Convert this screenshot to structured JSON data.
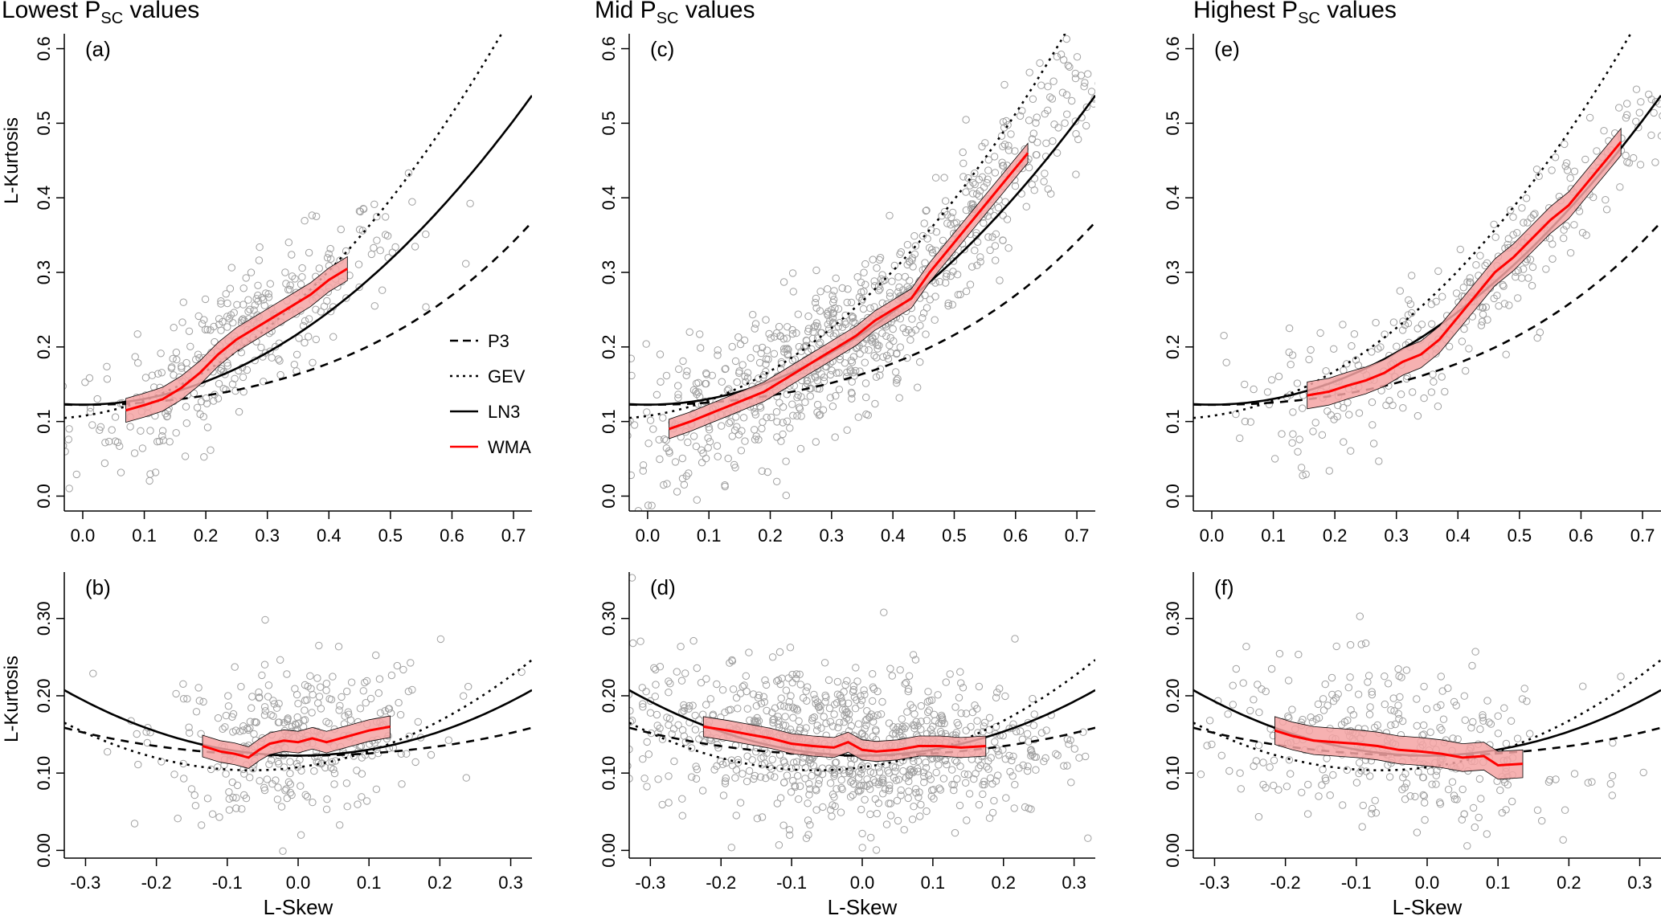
{
  "columns": [
    {
      "title_pre": "Lowest P",
      "title_sub": "SC",
      "title_post": " values"
    },
    {
      "title_pre": "Mid P",
      "title_sub": "SC",
      "title_post": " values"
    },
    {
      "title_pre": "Highest P",
      "title_sub": "SC",
      "title_post": " values"
    }
  ],
  "ylabel": "L-Kurtosis",
  "xlabel": "L-Skew",
  "legend": {
    "placement": "inside panel (a), lower right",
    "entries": [
      {
        "label": "P3",
        "style": "dashed",
        "color": "#000000"
      },
      {
        "label": "GEV",
        "style": "dotted",
        "color": "#000000"
      },
      {
        "label": "LN3",
        "style": "solid",
        "color": "#000000"
      },
      {
        "label": "WMA",
        "style": "solid",
        "color": "#ff0000"
      }
    ]
  },
  "colors": {
    "wma": "#ff0000",
    "wma_band": "#f4a3a3",
    "points": "#a0a0a0",
    "theory": "#000000"
  },
  "chart_data": [
    {
      "type": "scatter",
      "panel": "(a)",
      "row": "top",
      "xlim": [
        -0.03,
        0.73
      ],
      "ylim": [
        -0.02,
        0.62
      ],
      "xticks": [
        "0.0",
        "0.1",
        "0.2",
        "0.3",
        "0.4",
        "0.5",
        "0.6",
        "0.7"
      ],
      "yticks": [
        "0.0",
        "0.1",
        "0.2",
        "0.3",
        "0.4",
        "0.5",
        "0.6"
      ],
      "wma": {
        "x": [
          0.07,
          0.1,
          0.13,
          0.16,
          0.19,
          0.22,
          0.25,
          0.28,
          0.31,
          0.34,
          0.37,
          0.4,
          0.43
        ],
        "y": [
          0.115,
          0.122,
          0.13,
          0.145,
          0.165,
          0.19,
          0.21,
          0.225,
          0.24,
          0.255,
          0.27,
          0.29,
          0.305
        ],
        "band": 0.016
      },
      "n_points": 330,
      "scatter_sd": 0.045
    },
    {
      "type": "scatter",
      "panel": "(b)",
      "row": "bottom",
      "xlim": [
        -0.33,
        0.33
      ],
      "ylim": [
        -0.01,
        0.36
      ],
      "xticks": [
        "-0.3",
        "-0.2",
        "-0.1",
        "0.0",
        "0.1",
        "0.2",
        "0.3"
      ],
      "yticks": [
        "0.00",
        "0.10",
        "0.20",
        "0.30"
      ],
      "wma": {
        "x": [
          -0.135,
          -0.11,
          -0.09,
          -0.07,
          -0.055,
          -0.04,
          -0.02,
          0.0,
          0.02,
          0.04,
          0.06,
          0.08,
          0.1,
          0.13
        ],
        "y": [
          0.135,
          0.128,
          0.125,
          0.12,
          0.13,
          0.138,
          0.142,
          0.14,
          0.145,
          0.14,
          0.145,
          0.15,
          0.155,
          0.16
        ],
        "band": 0.014
      },
      "n_points": 330,
      "scatter_sd": 0.05
    },
    {
      "type": "scatter",
      "panel": "(c)",
      "row": "top",
      "xlim": [
        -0.03,
        0.73
      ],
      "ylim": [
        -0.02,
        0.62
      ],
      "xticks": [
        "0.0",
        "0.1",
        "0.2",
        "0.3",
        "0.4",
        "0.5",
        "0.6",
        "0.7"
      ],
      "yticks": [
        "0.0",
        "0.1",
        "0.2",
        "0.3",
        "0.4",
        "0.5",
        "0.6"
      ],
      "wma": {
        "x": [
          0.035,
          0.07,
          0.1,
          0.13,
          0.16,
          0.19,
          0.22,
          0.25,
          0.28,
          0.31,
          0.34,
          0.37,
          0.4,
          0.43,
          0.46,
          0.49,
          0.52,
          0.55,
          0.58,
          0.62
        ],
        "y": [
          0.09,
          0.1,
          0.11,
          0.12,
          0.13,
          0.14,
          0.155,
          0.17,
          0.185,
          0.2,
          0.215,
          0.235,
          0.25,
          0.265,
          0.3,
          0.33,
          0.36,
          0.39,
          0.42,
          0.46
        ],
        "band": 0.013
      },
      "n_points": 900,
      "scatter_sd": 0.05
    },
    {
      "type": "scatter",
      "panel": "(d)",
      "row": "bottom",
      "xlim": [
        -0.33,
        0.33
      ],
      "ylim": [
        -0.01,
        0.36
      ],
      "xticks": [
        "-0.3",
        "-0.2",
        "-0.1",
        "0.0",
        "0.1",
        "0.2",
        "0.3"
      ],
      "yticks": [
        "0.00",
        "0.10",
        "0.20",
        "0.30"
      ],
      "wma": {
        "x": [
          -0.225,
          -0.19,
          -0.16,
          -0.13,
          -0.1,
          -0.07,
          -0.04,
          -0.02,
          0.0,
          0.02,
          0.05,
          0.08,
          0.11,
          0.14,
          0.175
        ],
        "y": [
          0.16,
          0.155,
          0.15,
          0.145,
          0.138,
          0.135,
          0.133,
          0.14,
          0.13,
          0.128,
          0.13,
          0.135,
          0.135,
          0.133,
          0.135
        ],
        "band": 0.013
      },
      "n_points": 900,
      "scatter_sd": 0.05
    },
    {
      "type": "scatter",
      "panel": "(e)",
      "row": "top",
      "xlim": [
        -0.03,
        0.73
      ],
      "ylim": [
        -0.02,
        0.62
      ],
      "xticks": [
        "0.0",
        "0.1",
        "0.2",
        "0.3",
        "0.4",
        "0.5",
        "0.6",
        "0.7"
      ],
      "yticks": [
        "0.0",
        "0.1",
        "0.2",
        "0.3",
        "0.4",
        "0.5",
        "0.6"
      ],
      "wma": {
        "x": [
          0.155,
          0.19,
          0.22,
          0.25,
          0.28,
          0.31,
          0.34,
          0.37,
          0.4,
          0.43,
          0.46,
          0.49,
          0.52,
          0.55,
          0.58,
          0.61,
          0.64,
          0.665
        ],
        "y": [
          0.135,
          0.14,
          0.148,
          0.155,
          0.165,
          0.18,
          0.19,
          0.21,
          0.24,
          0.27,
          0.3,
          0.32,
          0.345,
          0.37,
          0.39,
          0.42,
          0.45,
          0.475
        ],
        "band": 0.018
      },
      "n_points": 330,
      "scatter_sd": 0.045
    },
    {
      "type": "scatter",
      "panel": "(f)",
      "row": "bottom",
      "xlim": [
        -0.33,
        0.33
      ],
      "ylim": [
        -0.01,
        0.36
      ],
      "xticks": [
        "-0.3",
        "-0.2",
        "-0.1",
        "0.0",
        "0.1",
        "0.2",
        "0.3"
      ],
      "yticks": [
        "0.00",
        "0.10",
        "0.20",
        "0.30"
      ],
      "wma": {
        "x": [
          -0.215,
          -0.19,
          -0.16,
          -0.13,
          -0.1,
          -0.07,
          -0.04,
          -0.01,
          0.02,
          0.05,
          0.08,
          0.1,
          0.135
        ],
        "y": [
          0.155,
          0.148,
          0.142,
          0.14,
          0.138,
          0.135,
          0.13,
          0.128,
          0.125,
          0.12,
          0.122,
          0.11,
          0.112
        ],
        "band": 0.018
      },
      "n_points": 330,
      "scatter_sd": 0.05
    }
  ]
}
